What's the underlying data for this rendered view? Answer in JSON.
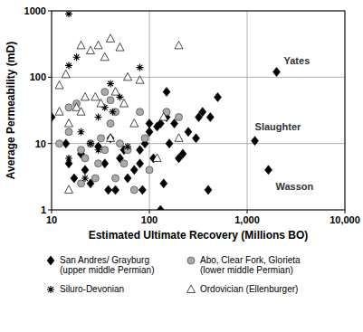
{
  "chart_data": {
    "type": "scatter",
    "x_label": "Estimated Ultimate Recovery (Millions BO)",
    "y_label": "Average Permeability (mD)",
    "log": true,
    "grid": true,
    "legend": "bottom",
    "xlim": [
      10,
      10000
    ],
    "ylim": [
      1,
      1000
    ],
    "xticks": [
      10,
      100,
      {
        "value": 1000,
        "label": "1,000"
      },
      {
        "value": 10000,
        "label": "10,000"
      }
    ],
    "yticks": [
      1,
      10,
      100,
      1000
    ],
    "annotations": [
      {
        "text": "Yates",
        "x": 2000,
        "y": 120
      },
      {
        "text": "Slaughter",
        "x": 1200,
        "y": 11
      },
      {
        "text": "Wasson",
        "x": 1650,
        "y": 4
      }
    ],
    "series": [
      {
        "name": "San Andres/ Grayburg (upper middle Permian)",
        "color": "#000000",
        "marker": "diamond",
        "x": [
          2000,
          1200,
          1650,
          10,
          14,
          15,
          17,
          20,
          22,
          25,
          30,
          35,
          38,
          40,
          45,
          50,
          55,
          60,
          70,
          80,
          80,
          90,
          100,
          100,
          110,
          120,
          130,
          130,
          140,
          150,
          150,
          160,
          180,
          200,
          220,
          300,
          320,
          350,
          400,
          420,
          500,
          250,
          85
        ],
        "values": [
          120,
          11,
          4,
          25,
          10,
          5,
          3,
          7,
          4,
          2.5,
          9,
          5,
          2,
          12,
          2,
          6,
          8,
          3,
          4,
          8,
          5,
          10,
          20,
          15,
          6,
          18,
          1,
          20,
          2.5,
          60,
          25,
          10,
          20,
          6,
          7,
          12,
          25,
          30,
          2,
          25,
          50,
          15,
          2
        ]
      },
      {
        "name": "Abo, Clear Fork, Glorieta (lower middle Permian)",
        "color": "#aaaaaa",
        "marker": "circle",
        "x": [
          15,
          18,
          20,
          22,
          25,
          28,
          30,
          32,
          35,
          40,
          40,
          45,
          50,
          55,
          60,
          70,
          80,
          90,
          100,
          150,
          200,
          20,
          15,
          12,
          35,
          45
        ],
        "values": [
          35,
          40,
          8,
          6,
          10,
          3,
          5,
          12,
          8,
          45,
          20,
          30,
          10,
          5,
          8,
          2,
          30,
          12,
          4,
          30,
          25,
          2.5,
          15,
          10,
          60,
          3
        ]
      },
      {
        "name": "Siluro-Devonian",
        "color": "#000000",
        "marker": "asterisk",
        "x": [
          15,
          15,
          18,
          15,
          20,
          25,
          30,
          40,
          42,
          50,
          80,
          30,
          22,
          60,
          35
        ],
        "values": [
          900,
          150,
          200,
          6,
          15,
          10,
          8,
          80,
          30,
          50,
          140,
          25,
          3,
          9,
          35
        ]
      },
      {
        "name": "Ordovician (Ellenburger)",
        "color": "#ffffff",
        "marker": "triangle",
        "x": [
          12,
          12,
          15,
          18,
          20,
          25,
          30,
          35,
          40,
          50,
          60,
          80,
          200,
          14,
          22,
          28,
          32,
          45,
          55,
          70,
          120,
          15,
          20,
          140,
          200,
          40
        ],
        "values": [
          75,
          30,
          20,
          35,
          300,
          250,
          300,
          200,
          380,
          280,
          100,
          90,
          300,
          110,
          50,
          50,
          40,
          60,
          40,
          20,
          6,
          2,
          30,
          25,
          12,
          12
        ]
      }
    ]
  }
}
